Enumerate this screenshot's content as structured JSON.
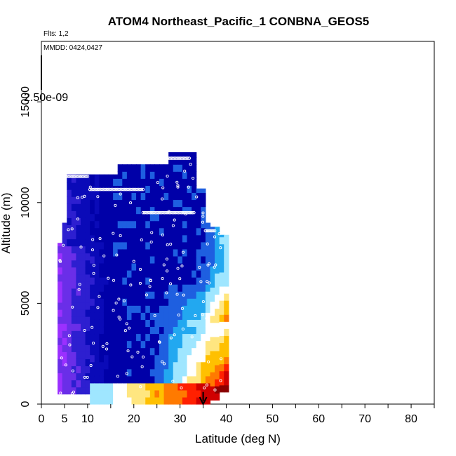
{
  "chart_data": {
    "type": "heatmap",
    "title": "ATOM4 Northeast_Pacific_1 CONBNA_GEOS5",
    "flights_note": "Flts: 1,2",
    "dates_note": "MMDD: 0424,0427",
    "scale_label": "2.50e-09",
    "xlabel": "Latitude (deg N)",
    "ylabel": "Altitude (m)",
    "xlim": [
      0,
      85
    ],
    "ylim": [
      0,
      18000
    ],
    "x_ticks": [
      0,
      5,
      10,
      20,
      30,
      40,
      50,
      60,
      70,
      80
    ],
    "x_minor_ticks": [
      15,
      25,
      35,
      45,
      55,
      65,
      75,
      85
    ],
    "y_ticks": [
      0,
      5000,
      10000,
      15000
    ],
    "grid": false,
    "colormap": [
      "#9b30ff",
      "#6a2ee8",
      "#2d1fd0",
      "#0a0ab8",
      "#0000a8",
      "#1e5fe0",
      "#22a8f0",
      "#9fe6ff",
      "#ffffff",
      "#ffe680",
      "#ffc000",
      "#ff7a00",
      "#ff2000",
      "#d00000",
      "#8b0000"
    ],
    "curtain": {
      "lat_range": [
        3.5,
        40
      ],
      "alt_range": [
        300,
        12500
      ],
      "description_levels": "purple low values south, red high values near surface north"
    },
    "flight_track_segments": [
      {
        "lat_start": 5,
        "lat_end": 10,
        "alt": 11300
      },
      {
        "lat_start": 10.5,
        "lat_end": 22,
        "alt": 10650
      },
      {
        "lat_start": 22,
        "lat_end": 33,
        "alt": 9500
      },
      {
        "lat_start": 27.5,
        "lat_end": 32,
        "alt": 12200
      },
      {
        "lat_start": 35.5,
        "lat_end": 37.5,
        "alt": 8600
      }
    ],
    "arrow": {
      "lat": 35,
      "alt_top": 600,
      "alt_bottom": 0
    }
  }
}
